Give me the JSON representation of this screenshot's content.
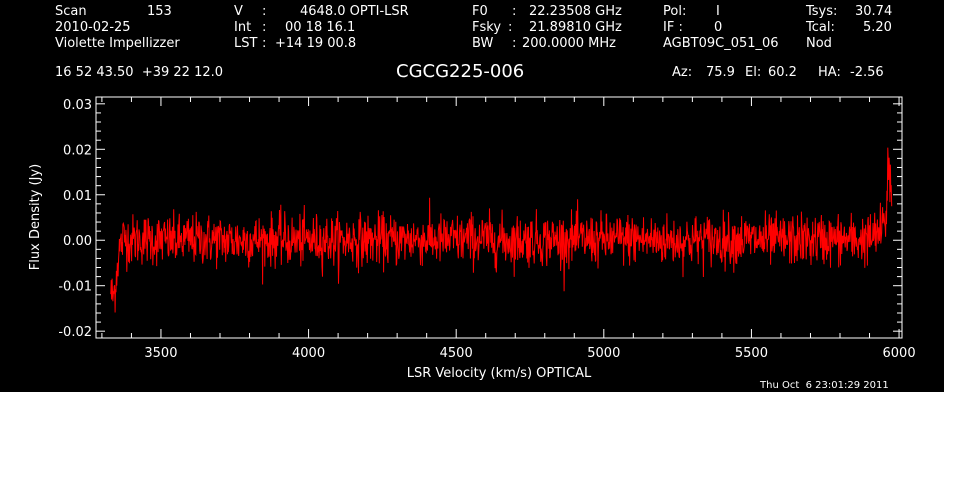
{
  "header": {
    "col1": {
      "scan_label": "Scan",
      "scan_value": "153",
      "date": "2010-02-25",
      "observer": "Violette Impellizzer"
    },
    "col2": {
      "v_label": "V",
      "v_value": "4648.0 OPTI-LSR",
      "int_label": "Int",
      "int_value": "00 18 16.1",
      "lst_label": "LST",
      "lst_value": "+14 19 00.8"
    },
    "col3": {
      "f0_label": "F0",
      "f0_value": "22.23508 GHz",
      "fsky_label": "Fsky",
      "fsky_value": "21.89810 GHz",
      "bw_label": "BW",
      "bw_value": "200.0000 MHz"
    },
    "col4": {
      "pol_label": "Pol:",
      "pol_value": "I",
      "if_label": "IF :",
      "if_value": "0",
      "project": "AGBT09C_051_06"
    },
    "col5": {
      "tsys_label": "Tsys:",
      "tsys_value": "30.74",
      "tcal_label": "Tcal:",
      "tcal_value": "5.20",
      "mode": "Nod"
    },
    "coords": "16 52 43.50  +39 22 12.0",
    "source": "CGCG225-006",
    "az_label": "Az:",
    "az_value": "75.9",
    "el_label": "El:",
    "el_value": "60.2",
    "ha_label": "HA:",
    "ha_value": "-2.56"
  },
  "timestamp": "Thu Oct  6 23:01:29 2011",
  "colors": {
    "background": "#000000",
    "axes": "#ffffff",
    "trace": "#ff0000"
  },
  "chart_data": {
    "type": "line",
    "xlabel": "LSR Velocity (km/s) OPTICAL",
    "ylabel": "Flux Density (Jy)",
    "xlim": [
      3280,
      6010
    ],
    "ylim": [
      -0.0215,
      0.0315
    ],
    "xticks": [
      3500,
      4000,
      4500,
      5000,
      5500,
      6000
    ],
    "yticks": [
      -0.02,
      -0.01,
      0.0,
      0.01,
      0.02,
      0.03
    ],
    "ytick_labels": [
      "-0.02",
      "-0.01",
      "0.00",
      "0.01",
      "0.02",
      "0.03"
    ],
    "grid": false,
    "series": [
      {
        "x": [
          3330,
          3335,
          3340,
          3345,
          3350,
          3355,
          3360,
          3365,
          3370,
          3380,
          3400,
          3450,
          3500,
          3550,
          3600,
          3650,
          3700,
          3750,
          3800,
          3850,
          3900,
          3950,
          4000,
          4050,
          4100,
          4150,
          4200,
          4250,
          4300,
          4350,
          4400,
          4450,
          4500,
          4550,
          4600,
          4650,
          4700,
          4750,
          4800,
          4850,
          4900,
          4950,
          5000,
          5050,
          5100,
          5150,
          5200,
          5250,
          5300,
          5350,
          5400,
          5450,
          5500,
          5550,
          5600,
          5650,
          5700,
          5750,
          5800,
          5850,
          5900,
          5920,
          5940,
          5950,
          5955,
          5960,
          5965,
          5970,
          5975
        ],
        "y": [
          -0.011,
          -0.0125,
          -0.012,
          -0.01,
          -0.007,
          -0.004,
          -0.002,
          -0.001,
          0.0,
          0.0005,
          0.0,
          0.0003,
          0.0,
          -0.0002,
          0.0001,
          0.0002,
          0.0,
          -0.0001,
          0.0001,
          0.0,
          0.0002,
          -0.0001,
          0.0,
          0.0001,
          -0.0001,
          0.0002,
          0.0,
          0.0001,
          0.0,
          0.0003,
          0.0002,
          0.0,
          0.0001,
          0.0003,
          0.0002,
          0.0,
          -0.0001,
          0.0002,
          0.0001,
          0.0,
          0.0002,
          0.0001,
          0.0,
          0.0002,
          0.0003,
          0.0001,
          0.0,
          -0.0002,
          0.0,
          0.0001,
          0.0,
          0.0002,
          0.0001,
          0.0,
          -0.0001,
          0.0001,
          0.0,
          0.0002,
          0.0001,
          0.0,
          0.0003,
          0.001,
          0.002,
          0.0035,
          0.005,
          0.007,
          0.0095,
          0.012,
          0.008
        ],
        "noise_rms_jy": 0.0028
      }
    ]
  }
}
